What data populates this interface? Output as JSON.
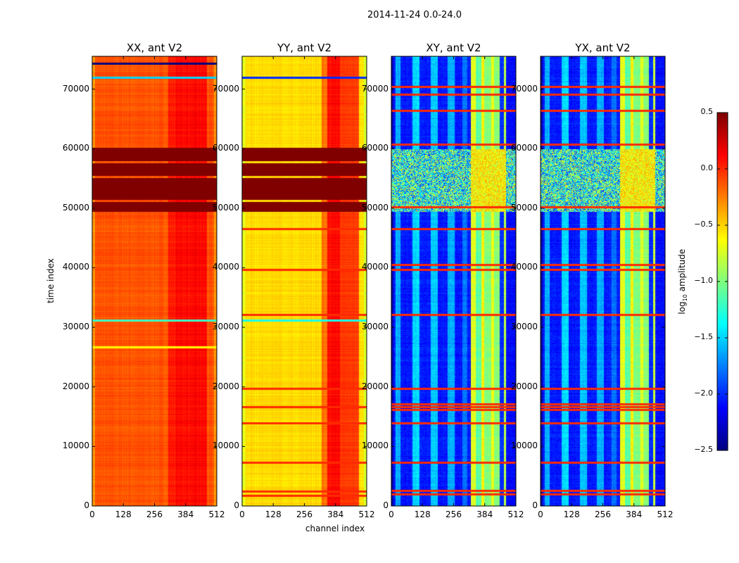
{
  "chart_data": {
    "type": "heatmap",
    "title": "2014-11-24 0.0-24.0",
    "xlabel": "channel index",
    "ylabel": "time index",
    "xlim": [
      0,
      512
    ],
    "ylim": [
      0,
      75500
    ],
    "xticks": [
      0,
      128,
      256,
      384,
      512
    ],
    "yticks": [
      0,
      10000,
      20000,
      30000,
      40000,
      50000,
      60000,
      70000
    ],
    "colormap": "jet",
    "colorbar": {
      "label_prefix": "log",
      "label_sub": "10",
      "label_suffix": " amplitude",
      "vmin": -2.5,
      "vmax": 0.5,
      "ticks": [
        "0.5",
        "0.0",
        "−0.5",
        "−1.0",
        "−1.5",
        "−2.0",
        "−2.5"
      ],
      "tick_values": [
        0.5,
        0.0,
        -0.5,
        -1.0,
        -1.5,
        -2.0,
        -2.5
      ]
    },
    "panels": [
      {
        "title": "XX, ant V2",
        "base": -0.12,
        "noise": 0.05,
        "col_bands": [
          [
            0,
            10,
            -0.3
          ],
          [
            310,
            340,
            0.05
          ],
          [
            340,
            470,
            0.1
          ],
          [
            500,
            512,
            -0.3
          ]
        ],
        "row_bands": [
          [
            49500,
            51000,
            0.5
          ],
          [
            51500,
            53000,
            0.5
          ],
          [
            53000,
            55000,
            0.5
          ],
          [
            55500,
            57500,
            0.5
          ],
          [
            58000,
            60000,
            0.5
          ],
          [
            71800,
            72000,
            -1.5
          ],
          [
            74200,
            74400,
            -2.5
          ],
          [
            31000,
            31200,
            -1.2
          ],
          [
            26500,
            26700,
            -0.6
          ]
        ],
        "burst": false
      },
      {
        "title": "YY, ant V2",
        "base": -0.52,
        "noise": 0.05,
        "col_bands": [
          [
            0,
            12,
            -0.7
          ],
          [
            325,
            350,
            -0.2
          ],
          [
            350,
            400,
            0.1
          ],
          [
            400,
            480,
            -0.05
          ],
          [
            500,
            512,
            -0.75
          ]
        ],
        "row_bands": [
          [
            49500,
            51000,
            0.5
          ],
          [
            51500,
            53000,
            0.5
          ],
          [
            53000,
            55000,
            0.5
          ],
          [
            55500,
            57500,
            0.5
          ],
          [
            58000,
            60000,
            0.5
          ],
          [
            71800,
            72000,
            -2.0
          ],
          [
            46400,
            46600,
            0.0
          ],
          [
            39500,
            39700,
            0.0
          ],
          [
            32000,
            32200,
            0.0
          ],
          [
            31000,
            31200,
            -1.3
          ],
          [
            19500,
            19700,
            0.0
          ],
          [
            16500,
            16700,
            0.0
          ],
          [
            13800,
            14000,
            0.0
          ],
          [
            7200,
            7400,
            0.0
          ],
          [
            2300,
            2500,
            0.0
          ],
          [
            1600,
            1800,
            0.0
          ]
        ],
        "burst": false
      },
      {
        "title": "XY, ant V2",
        "base": -2.05,
        "noise": 0.18,
        "col_bands": [
          [
            0,
            8,
            -2.4
          ],
          [
            15,
            35,
            -1.6
          ],
          [
            85,
            115,
            -1.5
          ],
          [
            160,
            190,
            -1.55
          ],
          [
            230,
            260,
            -1.6
          ],
          [
            290,
            310,
            -1.8
          ],
          [
            325,
            345,
            -0.7
          ],
          [
            345,
            370,
            -1.1
          ],
          [
            370,
            380,
            -0.6
          ],
          [
            380,
            410,
            -1.0
          ],
          [
            410,
            420,
            -0.7
          ],
          [
            420,
            445,
            -0.95
          ],
          [
            445,
            460,
            -2.0
          ],
          [
            460,
            470,
            -0.8
          ],
          [
            475,
            512,
            -2.1
          ]
        ],
        "row_bands": [
          [
            50000,
            50200,
            0.0
          ],
          [
            60600,
            60800,
            0.0
          ],
          [
            66200,
            66400,
            0.0
          ],
          [
            69000,
            69200,
            0.0
          ],
          [
            70200,
            70400,
            0.0
          ],
          [
            46400,
            46600,
            0.0
          ],
          [
            39500,
            39700,
            0.0
          ],
          [
            40300,
            40500,
            0.0
          ],
          [
            32000,
            32200,
            0.0
          ],
          [
            19500,
            19700,
            0.0
          ],
          [
            17000,
            17200,
            0.0
          ],
          [
            16500,
            16700,
            0.0
          ],
          [
            16000,
            16200,
            0.0
          ],
          [
            13800,
            14000,
            0.0
          ],
          [
            7200,
            7400,
            0.0
          ],
          [
            2400,
            2600,
            0.0
          ],
          [
            1800,
            2000,
            0.0
          ]
        ],
        "burst": true
      },
      {
        "title": "YX, ant V2",
        "base": -2.05,
        "noise": 0.18,
        "col_bands": [
          [
            0,
            8,
            -2.4
          ],
          [
            15,
            35,
            -1.6
          ],
          [
            85,
            115,
            -1.5
          ],
          [
            160,
            190,
            -1.55
          ],
          [
            230,
            260,
            -1.6
          ],
          [
            290,
            310,
            -1.8
          ],
          [
            325,
            345,
            -0.7
          ],
          [
            345,
            370,
            -1.1
          ],
          [
            370,
            380,
            -0.6
          ],
          [
            380,
            410,
            -1.0
          ],
          [
            410,
            420,
            -0.7
          ],
          [
            420,
            445,
            -0.95
          ],
          [
            445,
            460,
            -2.0
          ],
          [
            460,
            470,
            -0.8
          ],
          [
            475,
            512,
            -2.1
          ]
        ],
        "row_bands": [
          [
            50000,
            50200,
            0.0
          ],
          [
            60600,
            60800,
            0.0
          ],
          [
            66200,
            66400,
            0.0
          ],
          [
            69000,
            69200,
            0.0
          ],
          [
            70200,
            70400,
            0.0
          ],
          [
            46400,
            46600,
            0.0
          ],
          [
            39500,
            39700,
            0.0
          ],
          [
            40300,
            40500,
            0.0
          ],
          [
            32000,
            32200,
            0.0
          ],
          [
            19500,
            19700,
            0.0
          ],
          [
            17000,
            17200,
            0.0
          ],
          [
            16500,
            16700,
            0.0
          ],
          [
            16000,
            16200,
            0.0
          ],
          [
            13800,
            14000,
            0.0
          ],
          [
            7200,
            7400,
            0.0
          ],
          [
            2400,
            2600,
            0.0
          ],
          [
            1800,
            2000,
            0.0
          ]
        ],
        "burst": true
      }
    ]
  }
}
